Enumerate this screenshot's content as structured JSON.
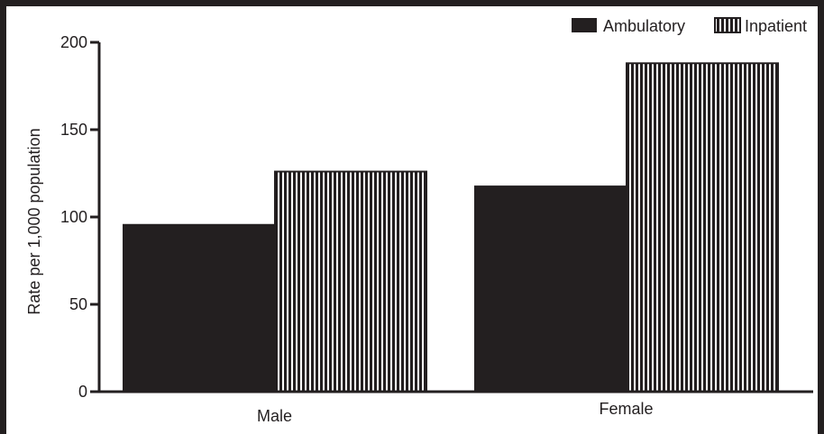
{
  "chart_data": {
    "type": "bar",
    "categories": [
      "Male",
      "Female"
    ],
    "series": [
      {
        "name": "Ambulatory",
        "values": [
          96,
          118
        ]
      },
      {
        "name": "Inpatient",
        "values": [
          126,
          188
        ]
      }
    ],
    "title": "",
    "xlabel": "",
    "ylabel": "Rate per 1,000 population",
    "ylim": [
      0,
      200
    ],
    "yticks": [
      0,
      50,
      100,
      150,
      200
    ],
    "grid": false,
    "legend_position": "top-right",
    "colors": {
      "ink": "#231f20",
      "background": "#ffffff"
    },
    "series_fill": [
      "solid",
      "vertical-stripes"
    ]
  }
}
